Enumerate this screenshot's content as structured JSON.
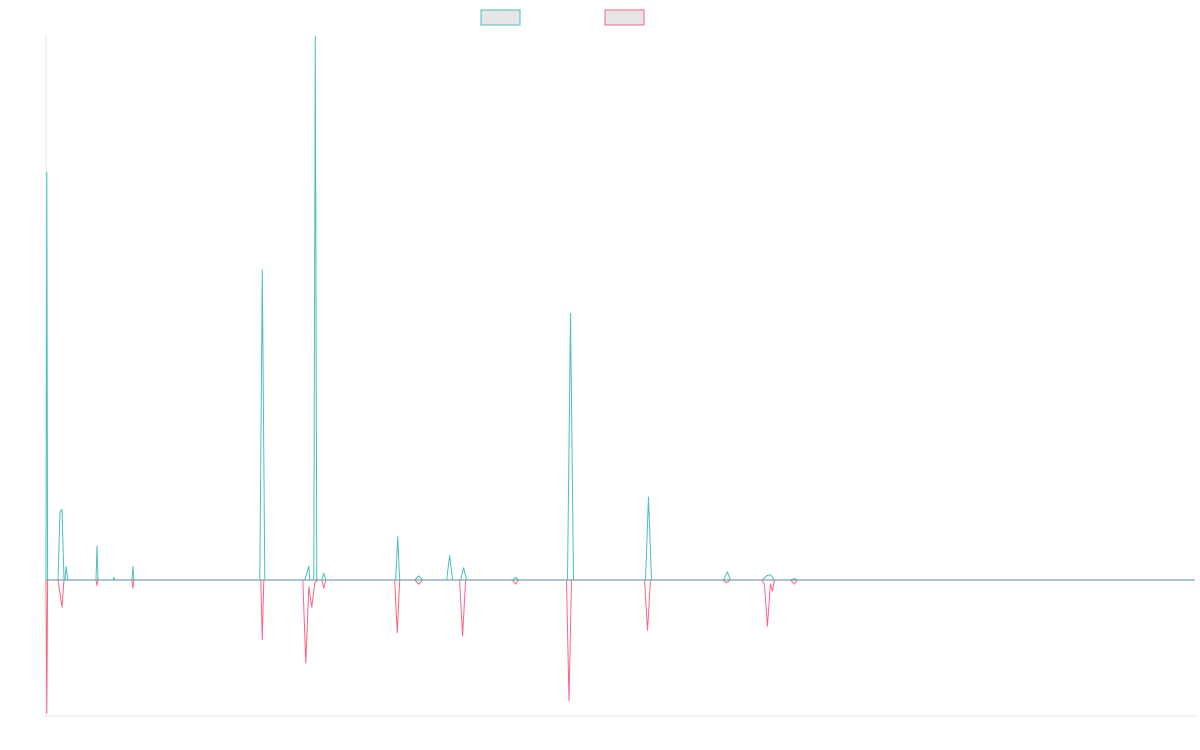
{
  "chart_data": {
    "type": "line",
    "title": "",
    "xlabel": "",
    "ylabel": "",
    "grid": false,
    "legend": {
      "position": "top-center"
    },
    "legend_entry_fill": "#e6e6e6",
    "ylim": [
      -100,
      400
    ],
    "xlim": [
      0,
      1150
    ],
    "series": [
      {
        "color": "#4bc0c0",
        "points": [
          [
            0,
            0
          ],
          [
            0.8,
            300
          ],
          [
            1.6,
            0
          ],
          [
            12,
            0
          ],
          [
            14,
            50
          ],
          [
            16,
            52
          ],
          [
            18,
            0
          ],
          [
            19,
            0
          ],
          [
            20,
            10
          ],
          [
            22,
            0
          ],
          [
            50,
            0
          ],
          [
            51,
            25
          ],
          [
            52,
            0
          ],
          [
            67,
            0
          ],
          [
            68,
            2
          ],
          [
            69,
            0
          ],
          [
            86,
            0
          ],
          [
            87,
            10
          ],
          [
            88,
            0
          ],
          [
            214,
            0
          ],
          [
            216.5,
            228
          ],
          [
            219,
            0
          ],
          [
            257,
            0
          ],
          [
            259,
            0
          ],
          [
            263,
            10
          ],
          [
            264,
            0
          ],
          [
            268,
            0
          ],
          [
            269.5,
            400
          ],
          [
            271,
            0
          ],
          [
            276,
            0
          ],
          [
            278,
            5
          ],
          [
            280,
            0
          ],
          [
            350,
            0
          ],
          [
            352,
            32
          ],
          [
            354,
            0
          ],
          [
            369,
            0
          ],
          [
            373,
            3
          ],
          [
            377,
            0
          ],
          [
            401,
            0
          ],
          [
            404,
            18
          ],
          [
            407,
            0
          ],
          [
            415,
            0
          ],
          [
            418,
            9
          ],
          [
            421,
            0
          ],
          [
            467,
            0
          ],
          [
            470,
            2
          ],
          [
            473,
            0
          ],
          [
            522,
            0
          ],
          [
            525,
            196
          ],
          [
            528,
            0
          ],
          [
            600,
            0
          ],
          [
            603,
            61
          ],
          [
            606,
            0
          ],
          [
            678,
            0
          ],
          [
            682,
            6
          ],
          [
            685,
            0
          ],
          [
            717,
            0
          ],
          [
            721,
            3
          ],
          [
            725,
            4
          ],
          [
            729,
            0
          ],
          [
            745,
            0
          ],
          [
            749,
            1
          ],
          [
            752,
            0
          ],
          [
            1150,
            0
          ]
        ]
      },
      {
        "color": "#ff6384",
        "points": [
          [
            0,
            0
          ],
          [
            0.8,
            -98
          ],
          [
            1.6,
            0
          ],
          [
            12,
            0
          ],
          [
            16,
            -20
          ],
          [
            18,
            0
          ],
          [
            50,
            0
          ],
          [
            51,
            -4
          ],
          [
            52,
            0
          ],
          [
            86,
            0
          ],
          [
            87,
            -6
          ],
          [
            88,
            0
          ],
          [
            215,
            0
          ],
          [
            216.5,
            -44
          ],
          [
            218,
            0
          ],
          [
            257,
            0
          ],
          [
            260,
            -61
          ],
          [
            263,
            -5
          ],
          [
            266,
            -20
          ],
          [
            269,
            -2
          ],
          [
            272,
            0
          ],
          [
            276,
            0
          ],
          [
            278,
            -6
          ],
          [
            280,
            0
          ],
          [
            349,
            0
          ],
          [
            351.5,
            -39
          ],
          [
            354,
            0
          ],
          [
            369,
            0
          ],
          [
            373,
            -3
          ],
          [
            377,
            0
          ],
          [
            414,
            0
          ],
          [
            417,
            -41
          ],
          [
            420,
            0
          ],
          [
            467,
            0
          ],
          [
            470,
            -3
          ],
          [
            473,
            0
          ],
          [
            521,
            0
          ],
          [
            523.5,
            -89
          ],
          [
            526,
            0
          ],
          [
            599,
            0
          ],
          [
            602,
            -37
          ],
          [
            605,
            0
          ],
          [
            677,
            0
          ],
          [
            681,
            -2
          ],
          [
            685,
            0
          ],
          [
            716,
            0
          ],
          [
            719,
            -3
          ],
          [
            722,
            -34
          ],
          [
            725,
            -3
          ],
          [
            727,
            -8
          ],
          [
            729,
            0
          ],
          [
            745,
            0
          ],
          [
            749,
            -3
          ],
          [
            752,
            0
          ],
          [
            1150,
            0
          ]
        ]
      }
    ]
  }
}
